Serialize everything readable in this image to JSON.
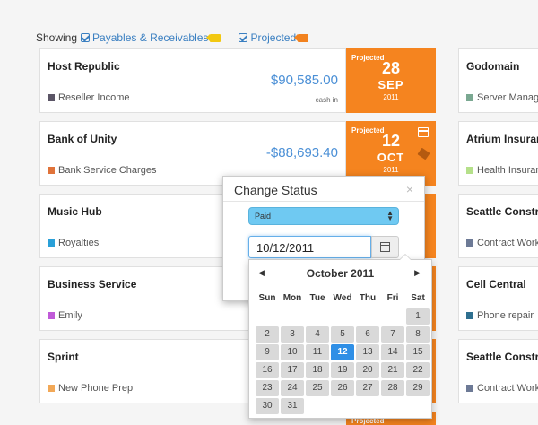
{
  "filter": {
    "showing_label": "Showing",
    "option1": "Payables & Receivables",
    "option2": "Projected"
  },
  "cards": [
    {
      "name": "Host Republic",
      "category": "Reseller Income",
      "swatch": "#5b5566",
      "amount": "$90,585.00",
      "sub": "cash in",
      "status": "Projected",
      "day": "28",
      "month": "SEP",
      "year": "2011"
    },
    {
      "name": "Bank of Unity",
      "category": "Bank Service Charges",
      "swatch": "#e0733a",
      "amount": "-$88,693.40",
      "status": "Projected",
      "day": "12",
      "month": "OCT",
      "year": "2011"
    },
    {
      "name": "Music Hub",
      "category": "Royalties",
      "swatch": "#2aa0d8"
    },
    {
      "name": "Business Service",
      "category": "Emily",
      "swatch": "#c05ad8"
    },
    {
      "name": "Sprint",
      "category": "New Phone Prep",
      "swatch": "#f2a857"
    }
  ],
  "right_cards": [
    {
      "name": "Godomain",
      "category": "Server Manager",
      "swatch": "#7aa891"
    },
    {
      "name": "Atrium Insurance",
      "category": "Health Insurance",
      "swatch": "#b5e08a"
    },
    {
      "name": "Seattle Construction",
      "category": "Contract Work",
      "swatch": "#6d7a96"
    },
    {
      "name": "Cell Central",
      "category": "Phone repair",
      "swatch": "#2e6f8f"
    },
    {
      "name": "Seattle Construction",
      "category": "Contract Work",
      "swatch": "#6d7a96"
    }
  ],
  "modal": {
    "title": "Change Status",
    "close": "×",
    "status_value": "Paid",
    "date_value": "10/12/2011"
  },
  "datepicker": {
    "month": "October",
    "year": "2011",
    "prev": "◀",
    "next": "▶",
    "weekdays": [
      "Sun",
      "Mon",
      "Tue",
      "Wed",
      "Thu",
      "Fri",
      "Sat"
    ],
    "leading_blanks": 6,
    "days_in_month": 31,
    "selected": 12
  },
  "bottom_label": "Projected",
  "colors": {
    "accent_orange": "#f5841f",
    "link_blue": "#3a7fc1",
    "amount_blue": "#4a8fd6",
    "select_blue": "#6fc9f2",
    "selected_day": "#2f8fe6"
  }
}
